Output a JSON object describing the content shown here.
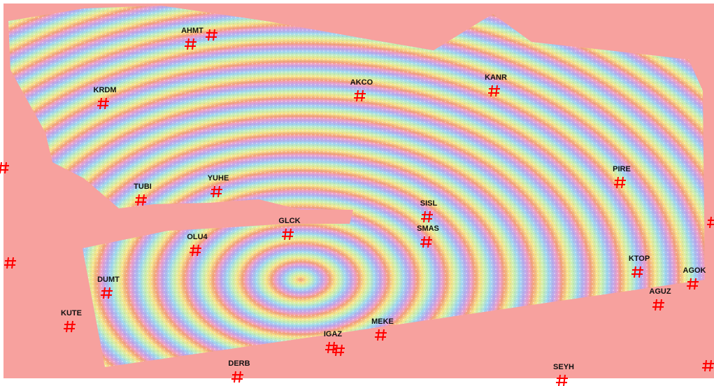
{
  "stations": [
    "AHMT",
    "KRDM",
    "AKCO",
    "KANR",
    "TUBI",
    "YUHE",
    "PIRE",
    "SISL",
    "GLCK",
    "SMAS",
    "OLU4",
    "DUMT",
    "KTOP",
    "AGOK",
    "AGUZ",
    "KUTE",
    "MEKE",
    "IGAZ",
    "DERB",
    "SEYH"
  ]
}
